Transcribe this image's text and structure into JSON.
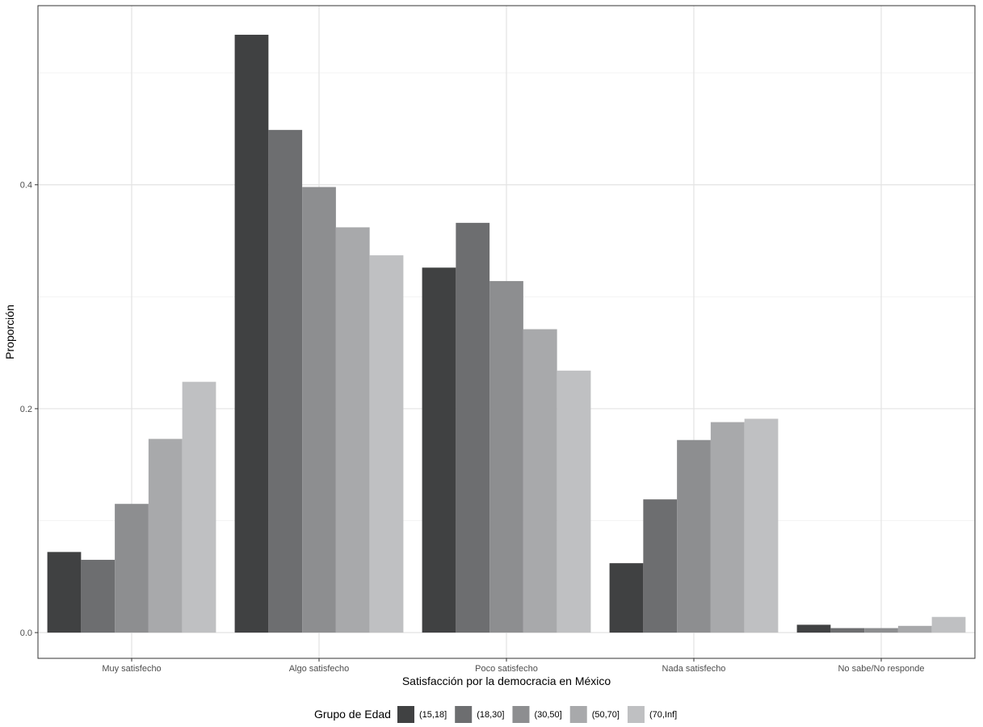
{
  "chart_data": {
    "type": "bar",
    "title": "",
    "xlabel": "Satisfacción por la democracia en México",
    "ylabel": "Proporción",
    "ylim": [
      -0.023,
      0.56
    ],
    "yticks": [
      0.0,
      0.2,
      0.4
    ],
    "ytick_labels": [
      "0.0",
      "0.2",
      "0.4"
    ],
    "y_minor_gridlines": [
      0.1,
      0.3,
      0.5
    ],
    "grid": true,
    "legend_position": "bottom",
    "legend_title": "Grupo de Edad",
    "categories": [
      "Muy satisfecho",
      "Algo satisfecho",
      "Poco satisfecho",
      "Nada satisfecho",
      "No sabe/No responde"
    ],
    "series": [
      {
        "name": "(15,18]",
        "color": "#404142",
        "values": [
          0.072,
          0.534,
          0.326,
          0.062,
          0.007
        ]
      },
      {
        "name": "(18,30]",
        "color": "#6d6e70",
        "values": [
          0.065,
          0.449,
          0.366,
          0.119,
          0.004
        ]
      },
      {
        "name": "(30,50]",
        "color": "#8d8e90",
        "values": [
          0.115,
          0.398,
          0.314,
          0.172,
          0.004
        ]
      },
      {
        "name": "(50,70]",
        "color": "#a8a9ab",
        "values": [
          0.173,
          0.362,
          0.271,
          0.188,
          0.006
        ]
      },
      {
        "name": "(70,Inf]",
        "color": "#bfc0c2",
        "values": [
          0.224,
          0.337,
          0.234,
          0.191,
          0.014
        ]
      }
    ]
  }
}
